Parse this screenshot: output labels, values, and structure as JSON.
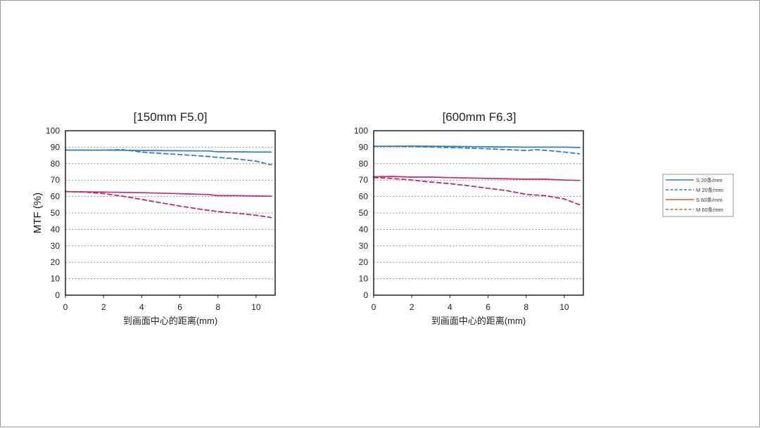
{
  "chart_data": [
    {
      "type": "line",
      "title": "[150mm F5.0]",
      "xlabel": "到画面中心的距离(mm)",
      "ylabel": "MTF (%)",
      "xlim": [
        0,
        11
      ],
      "ylim": [
        0,
        100
      ],
      "xticks": [
        0,
        2,
        4,
        6,
        8,
        10
      ],
      "yticks": [
        0,
        10,
        20,
        30,
        40,
        50,
        60,
        70,
        80,
        90,
        100
      ],
      "grid": true,
      "series": [
        {
          "name": "S 20条/mm",
          "color": "#2f7fc1",
          "dash": false,
          "x": [
            0,
            2,
            3,
            4,
            6,
            7.5,
            8,
            9,
            10,
            10.8
          ],
          "y": [
            88.2,
            88.2,
            88.1,
            88,
            87.8,
            87.7,
            87.2,
            87.2,
            87,
            87
          ]
        },
        {
          "name": "M 20条/mm",
          "color": "#2f7fc1",
          "dash": true,
          "x": [
            0,
            2,
            3,
            4,
            5,
            6,
            7,
            8,
            9,
            10,
            10.5,
            10.8
          ],
          "y": [
            88.2,
            88.2,
            88.5,
            87,
            86.2,
            85.5,
            84.8,
            83.8,
            82.8,
            81.5,
            80,
            79.3
          ]
        },
        {
          "name": "S 60条/mm",
          "color": "#c7276e",
          "dash": false,
          "x": [
            0,
            2,
            4,
            6,
            7.5,
            8,
            9,
            10,
            10.8
          ],
          "y": [
            63,
            62.7,
            62.3,
            61.7,
            61.2,
            60.5,
            60.5,
            60.3,
            60.2
          ]
        },
        {
          "name": "M 60条/mm",
          "color": "#c7276e",
          "dash": true,
          "x": [
            0,
            1,
            2,
            3,
            4,
            5,
            6,
            7,
            8,
            9,
            10,
            10.8
          ],
          "y": [
            63,
            62.7,
            61.8,
            60.2,
            58.2,
            56.2,
            54.2,
            52.4,
            50.8,
            49.8,
            48.6,
            47.2
          ]
        }
      ]
    },
    {
      "type": "line",
      "title": "[600mm F6.3]",
      "xlabel": "到画面中心的距离(mm)",
      "ylabel": "",
      "xlim": [
        0,
        11
      ],
      "ylim": [
        0,
        100
      ],
      "xticks": [
        0,
        2,
        4,
        6,
        8,
        10
      ],
      "yticks": [
        0,
        10,
        20,
        30,
        40,
        50,
        60,
        70,
        80,
        90,
        100
      ],
      "grid": true,
      "series": [
        {
          "name": "S 20条/mm",
          "color": "#2f7fc1",
          "dash": false,
          "x": [
            0,
            2,
            4,
            6,
            8,
            10,
            10.8
          ],
          "y": [
            90.5,
            90.7,
            90.5,
            90.2,
            90,
            90,
            89.8
          ]
        },
        {
          "name": "M 20条/mm",
          "color": "#2f7fc1",
          "dash": true,
          "x": [
            0,
            2,
            4,
            6,
            7,
            8,
            8.5,
            9,
            10,
            10.8
          ],
          "y": [
            90.5,
            90.4,
            89.8,
            89,
            88.5,
            88,
            88.4,
            88.1,
            87,
            86
          ]
        },
        {
          "name": "S 60条/mm",
          "color": "#c7276e",
          "dash": false,
          "x": [
            0,
            1,
            2,
            3,
            4,
            6,
            8,
            9,
            10,
            10.8
          ],
          "y": [
            72,
            72.2,
            71.8,
            71.8,
            71.5,
            71,
            70.5,
            70.5,
            70,
            69.8
          ]
        },
        {
          "name": "M 60条/mm",
          "color": "#c7276e",
          "dash": true,
          "x": [
            0,
            1,
            2,
            3,
            4,
            5,
            6,
            7,
            8,
            9,
            10,
            10.8
          ],
          "y": [
            71.5,
            71,
            70,
            68.8,
            67.8,
            66.5,
            65,
            63.5,
            61.3,
            60.5,
            58.5,
            55
          ]
        }
      ]
    }
  ],
  "legend": {
    "placement": "right",
    "items": [
      {
        "label": "S 20条/mm",
        "color": "#2f7fc1",
        "dash": false
      },
      {
        "label": "M 20条/mm",
        "color": "#2f7fc1",
        "dash": true
      },
      {
        "label": "S 60条/mm",
        "color": "#e2612a",
        "dash": false
      },
      {
        "label": "M 60条/mm",
        "color": "#e2612a",
        "dash": true
      }
    ]
  }
}
